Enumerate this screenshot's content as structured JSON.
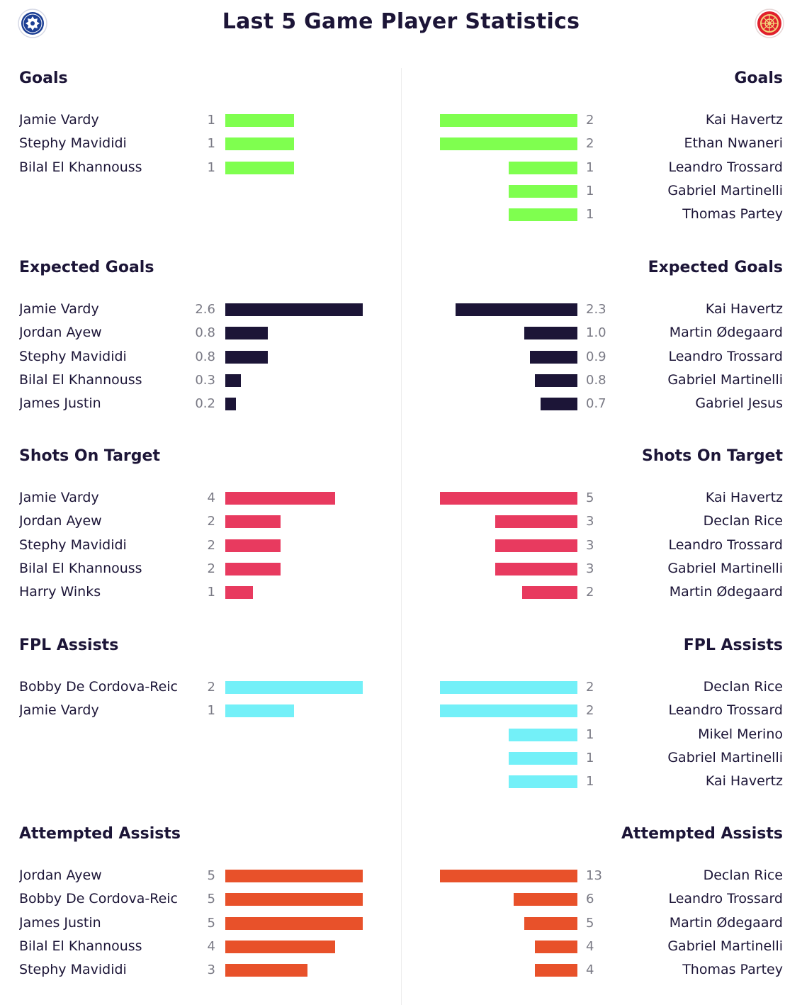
{
  "title": "Last 5 Game Player Statistics",
  "teams": {
    "left": {
      "crest": "home-team-crest-icon",
      "color": "#1c3f94"
    },
    "right": {
      "crest": "away-team-crest-icon",
      "color": "#e0202c"
    }
  },
  "chart_data": [
    {
      "type": "bar",
      "title": "Goals",
      "color": "#7fff4f",
      "max": 2,
      "left": [
        {
          "name": "Jamie Vardy",
          "value": 1,
          "label": "1"
        },
        {
          "name": "Stephy Mavididi",
          "value": 1,
          "label": "1"
        },
        {
          "name": "Bilal El Khannouss",
          "value": 1,
          "label": "1"
        }
      ],
      "right": [
        {
          "name": "Kai Havertz",
          "value": 2,
          "label": "2"
        },
        {
          "name": "Ethan Nwaneri",
          "value": 2,
          "label": "2"
        },
        {
          "name": "Leandro Trossard",
          "value": 1,
          "label": "1"
        },
        {
          "name": "Gabriel Martinelli",
          "value": 1,
          "label": "1"
        },
        {
          "name": "Thomas Partey",
          "value": 1,
          "label": "1"
        }
      ]
    },
    {
      "type": "bar",
      "title": "Expected Goals",
      "color": "#1c1537",
      "max": 2.6,
      "left": [
        {
          "name": "Jamie Vardy",
          "value": 2.6,
          "label": "2.6"
        },
        {
          "name": "Jordan Ayew",
          "value": 0.8,
          "label": "0.8"
        },
        {
          "name": "Stephy Mavididi",
          "value": 0.8,
          "label": "0.8"
        },
        {
          "name": "Bilal El Khannouss",
          "value": 0.3,
          "label": "0.3"
        },
        {
          "name": "James Justin",
          "value": 0.2,
          "label": "0.2"
        }
      ],
      "right": [
        {
          "name": "Kai Havertz",
          "value": 2.3,
          "label": "2.3"
        },
        {
          "name": "Martin Ødegaard",
          "value": 1.0,
          "label": "1.0"
        },
        {
          "name": "Leandro Trossard",
          "value": 0.9,
          "label": "0.9"
        },
        {
          "name": "Gabriel Martinelli",
          "value": 0.8,
          "label": "0.8"
        },
        {
          "name": "Gabriel Jesus",
          "value": 0.7,
          "label": "0.7"
        }
      ]
    },
    {
      "type": "bar",
      "title": "Shots On Target",
      "color": "#e83a5f",
      "max": 5,
      "left": [
        {
          "name": "Jamie Vardy",
          "value": 4,
          "label": "4"
        },
        {
          "name": "Jordan Ayew",
          "value": 2,
          "label": "2"
        },
        {
          "name": "Stephy Mavididi",
          "value": 2,
          "label": "2"
        },
        {
          "name": "Bilal El Khannouss",
          "value": 2,
          "label": "2"
        },
        {
          "name": "Harry Winks",
          "value": 1,
          "label": "1"
        }
      ],
      "right": [
        {
          "name": "Kai Havertz",
          "value": 5,
          "label": "5"
        },
        {
          "name": "Declan Rice",
          "value": 3,
          "label": "3"
        },
        {
          "name": "Leandro Trossard",
          "value": 3,
          "label": "3"
        },
        {
          "name": "Gabriel Martinelli",
          "value": 3,
          "label": "3"
        },
        {
          "name": "Martin Ødegaard",
          "value": 2,
          "label": "2"
        }
      ]
    },
    {
      "type": "bar",
      "title": "FPL Assists",
      "color": "#73f0f8",
      "max": 2,
      "left": [
        {
          "name": "Bobby De Cordova-Reic",
          "value": 2,
          "label": "2"
        },
        {
          "name": "Jamie Vardy",
          "value": 1,
          "label": "1"
        }
      ],
      "right": [
        {
          "name": "Declan Rice",
          "value": 2,
          "label": "2"
        },
        {
          "name": "Leandro Trossard",
          "value": 2,
          "label": "2"
        },
        {
          "name": "Mikel Merino",
          "value": 1,
          "label": "1"
        },
        {
          "name": "Gabriel Martinelli",
          "value": 1,
          "label": "1"
        },
        {
          "name": "Kai Havertz",
          "value": 1,
          "label": "1"
        }
      ]
    },
    {
      "type": "bar",
      "title": "Attempted Assists",
      "color": "#e8512a",
      "max": 5,
      "max_right": 13,
      "left": [
        {
          "name": "Jordan Ayew",
          "value": 5,
          "label": "5"
        },
        {
          "name": "Bobby De Cordova-Reic",
          "value": 5,
          "label": "5"
        },
        {
          "name": "James Justin",
          "value": 5,
          "label": "5"
        },
        {
          "name": "Bilal El Khannouss",
          "value": 4,
          "label": "4"
        },
        {
          "name": "Stephy Mavididi",
          "value": 3,
          "label": "3"
        }
      ],
      "right": [
        {
          "name": "Declan Rice",
          "value": 13,
          "label": "13"
        },
        {
          "name": "Leandro Trossard",
          "value": 6,
          "label": "6"
        },
        {
          "name": "Martin Ødegaard",
          "value": 5,
          "label": "5"
        },
        {
          "name": "Gabriel Martinelli",
          "value": 4,
          "label": "4"
        },
        {
          "name": "Thomas Partey",
          "value": 4,
          "label": "4"
        }
      ]
    }
  ]
}
